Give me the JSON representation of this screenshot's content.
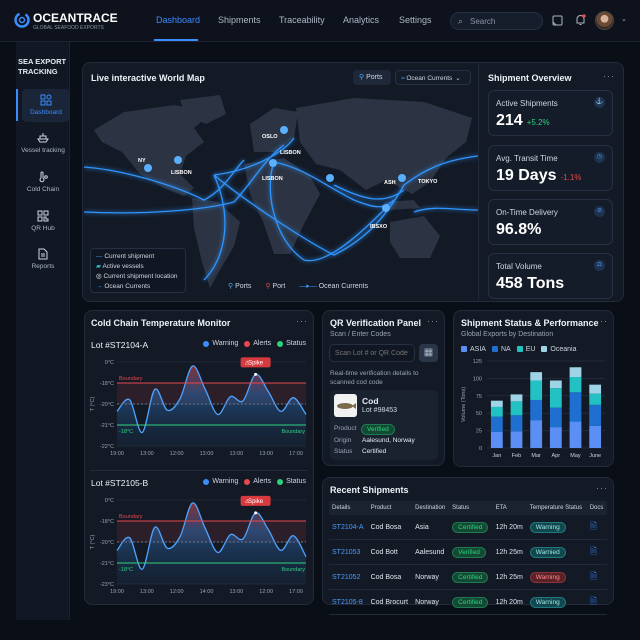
{
  "header": {
    "brand": "OCEANTRACE",
    "tagline": "GLOBAL SEAFOOD EXPORTS",
    "nav": [
      "Dashboard",
      "Shipments",
      "Traceability",
      "Analytics",
      "Settings"
    ],
    "active_nav": "Dashboard",
    "search_placeholder": "Search"
  },
  "sidebar": {
    "title": "SEA EXPORT TRACKING",
    "items": [
      {
        "label": "Dashboard",
        "icon": "grid-icon"
      },
      {
        "label": "Vessel tracking",
        "icon": "ship-icon"
      },
      {
        "label": "Cold Chain",
        "icon": "thermometer-icon"
      },
      {
        "label": "QR Hub",
        "icon": "qr-icon"
      },
      {
        "label": "Reports",
        "icon": "document-icon"
      }
    ]
  },
  "map": {
    "title": "Live interactive World Map",
    "ports_button": "Ports",
    "currents_dropdown": "Ocean Currents",
    "port_labels": [
      "OSLO",
      "LISBON",
      "NY",
      "LISBON",
      "LISBON",
      "ASH",
      "TOKYO",
      "IBSXO"
    ],
    "legend": [
      "Current shipment",
      "Active vessels",
      "Current shipment location",
      "Ocean Currents"
    ],
    "bottom_legend": [
      "Ports",
      "Port",
      "Ocean Currents"
    ]
  },
  "overview": {
    "title": "Shipment Overview",
    "kpis": [
      {
        "label": "Active Shipments",
        "value": "214",
        "change": "+5.2%",
        "trend": "up"
      },
      {
        "label": "Avg. Transit Time",
        "value": "19 Days",
        "change": "-1.1%",
        "trend": "down"
      },
      {
        "label": "On-Time Delivery",
        "value": "96.8%",
        "change": ""
      },
      {
        "label": "Total Volume",
        "value": "458 Tons",
        "change": ""
      }
    ]
  },
  "cold_chain": {
    "title": "Cold Chain Temperature Monitor",
    "legend": [
      "Warning",
      "Alerts",
      "Status"
    ],
    "spike_label": "Spike",
    "boundary_label": "Boundary",
    "low_label": "-18°C",
    "y_axis_label": "T (°C)",
    "lots": [
      {
        "name": "Lot #ST2104-A",
        "y_ticks": [
          "0°C",
          "-18°C",
          "-20°C",
          "-21°C",
          "-22°C"
        ],
        "y_values": [
          0,
          -18,
          -20,
          -21,
          -22
        ],
        "x_ticks": [
          "19:00",
          "13:00",
          "12:00",
          "13:00",
          "13:00",
          "13:00",
          "17:00"
        ],
        "temps": [
          -20.35,
          -19.6,
          -21.36,
          -18.6,
          -20.3,
          -19.5,
          -3.4,
          -18.6,
          -20.5,
          -19.3,
          -19.7,
          -10.6,
          -18.8,
          -20.35,
          -19.4,
          -20.5
        ],
        "upper": -18,
        "mid": -20,
        "lower": -21
      },
      {
        "name": "Lot #ST2105-B",
        "y_ticks": [
          "0°C",
          "-18°C",
          "-20°C",
          "-21°C",
          "-23°C"
        ],
        "y_values": [
          0,
          -18,
          -20,
          -21,
          -23
        ],
        "x_ticks": [
          "19:00",
          "13:00",
          "12:00",
          "14:00",
          "13:00",
          "12:00",
          "17:00"
        ],
        "temps": [
          -20.4,
          -19.6,
          -21.6,
          -18.6,
          -20.3,
          -19.5,
          -2.5,
          -18.7,
          -20.5,
          -19.3,
          -19.7,
          -11,
          -18.8,
          -20.4,
          -19.4,
          -20.7
        ],
        "upper": -18,
        "mid": -20,
        "lower": -21
      }
    ]
  },
  "qr": {
    "title": "QR Verification Panel",
    "subtitle": "Scan / Enter Codes",
    "input_placeholder": "Scan Lot # or QR Code",
    "hint": "Real-time verification details to scanned cod code",
    "product_name": "Cod",
    "lot": "Lot #98453",
    "rows": [
      {
        "k": "Product",
        "v": "Verified"
      },
      {
        "k": "Origin",
        "v": "Aalesund, Norway"
      },
      {
        "k": "Status",
        "v": "Certified"
      }
    ]
  },
  "chart_data": {
    "type": "bar",
    "stacked": true,
    "title": "Shipment Status & Performance",
    "subtitle": "Global Exports by Destination",
    "ylabel": "Volume (Tons)",
    "ylim": [
      0,
      125
    ],
    "y_ticks": [
      0,
      25,
      50,
      75,
      100,
      125
    ],
    "grid": true,
    "legend_placement": "top-left",
    "categories": [
      "Jan",
      "Feb",
      "Mar",
      "Apr",
      "May",
      "June"
    ],
    "series": [
      {
        "name": "ASIA",
        "color": "#5b8ff5",
        "values": [
          23,
          24,
          40,
          30,
          38,
          32
        ]
      },
      {
        "name": "NA",
        "color": "#1f6fd1",
        "values": [
          22,
          23,
          29,
          28,
          42,
          30
        ]
      },
      {
        "name": "EU",
        "color": "#22c1c3",
        "values": [
          14,
          20,
          28,
          28,
          22,
          16
        ]
      },
      {
        "name": "Oceania",
        "color": "#9fd3e6",
        "values": [
          9,
          10,
          12,
          11,
          14,
          13
        ]
      }
    ]
  },
  "recent": {
    "title": "Recent Shipments",
    "columns": [
      "Details",
      "Product",
      "Destination",
      "Status",
      "ETA",
      "Temperature Status",
      "Docs"
    ],
    "rows": [
      {
        "id": "ST2104-A",
        "product": "Cod Bosa",
        "dest": "Asia",
        "status": "Certified",
        "eta": "12h 20m",
        "temp": "Warning",
        "temp_level": "teal"
      },
      {
        "id": "ST21053",
        "product": "Cod Bott",
        "dest": "Aalesund",
        "status": "Verified",
        "eta": "12h 25m",
        "temp": "Warnied",
        "temp_level": "teal"
      },
      {
        "id": "ST21052",
        "product": "Cod Bosa",
        "dest": "Norway",
        "status": "Certified",
        "eta": "12h 25m",
        "temp": "Warning",
        "temp_level": "red"
      },
      {
        "id": "ST2105-8",
        "product": "Cod Brocurt",
        "dest": "Norway",
        "status": "Certified",
        "eta": "12h 20m",
        "temp": "Warning",
        "temp_level": "teal"
      }
    ]
  },
  "colors": {
    "accent": "#3b8cff",
    "success": "#2fd17c",
    "danger": "#e5484d",
    "teal": "#22c1c3"
  }
}
